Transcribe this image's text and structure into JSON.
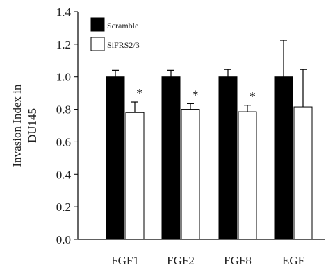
{
  "chart_data": {
    "type": "bar",
    "title": "",
    "xlabel": "",
    "ylabel": "Invasion Index in DU145",
    "ylabel_lines": [
      "Invasion Index in",
      "DU145"
    ],
    "ylim": [
      0,
      1.4
    ],
    "yticks": [
      "0.0",
      "0.2",
      "0.4",
      "0.6",
      "0.8",
      "1.0",
      "1.2",
      "1.4"
    ],
    "categories": [
      "FGF1",
      "FGF2",
      "FGF8",
      "EGF"
    ],
    "series": [
      {
        "name": "Scramble",
        "color": "#000000",
        "values": [
          1.0,
          1.0,
          1.0,
          1.0
        ],
        "errors": [
          0.04,
          0.04,
          0.045,
          0.225
        ]
      },
      {
        "name": "SiFRS2/3",
        "color": "#ffffff",
        "values": [
          0.78,
          0.8,
          0.785,
          0.815
        ],
        "errors": [
          0.065,
          0.035,
          0.04,
          0.23
        ]
      }
    ],
    "significance": [
      "*",
      "*",
      "*",
      ""
    ],
    "legend_position": "top-left",
    "grid": false
  }
}
